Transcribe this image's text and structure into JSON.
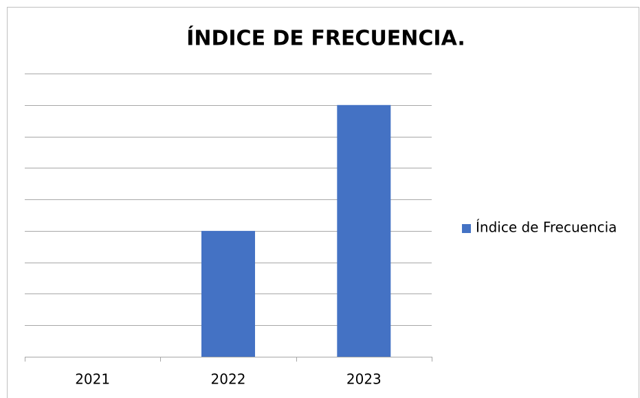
{
  "chart_data": {
    "type": "bar",
    "title": "ÍNDICE DE FRECUENCIA.",
    "categories": [
      "2021",
      "2022",
      "2023"
    ],
    "series": [
      {
        "name": "Índice de Frecuencia",
        "color": "#4472c4",
        "values": [
          0,
          4,
          8
        ]
      }
    ],
    "ylim": [
      0,
      9
    ],
    "yticks": [
      0,
      1,
      2,
      3,
      4,
      5,
      6,
      7,
      8,
      9
    ],
    "grid": true,
    "legend": "right"
  }
}
